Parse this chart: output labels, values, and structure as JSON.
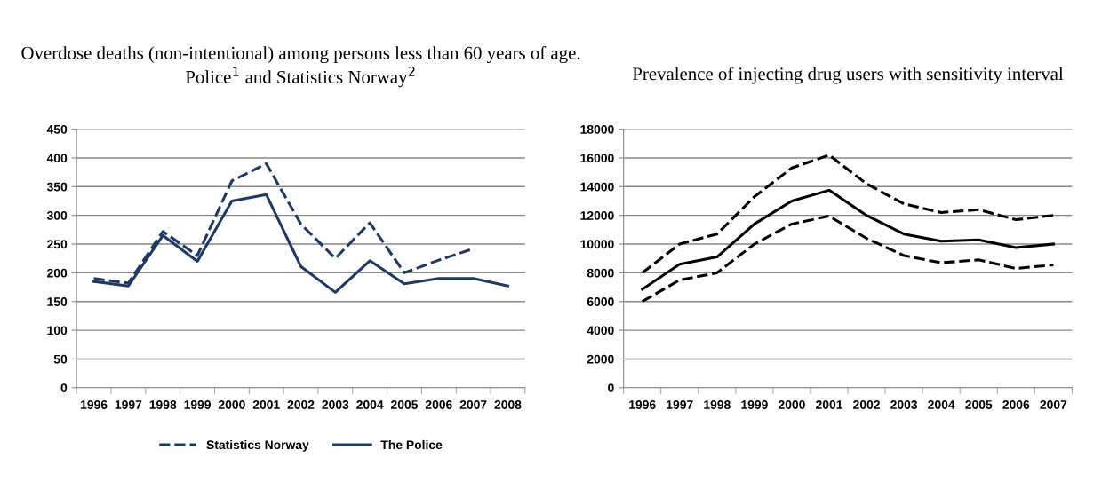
{
  "chart_data": [
    {
      "type": "line",
      "title": "Overdose deaths (non-intentional) among persons less than 60 years of age. Police$^{1}$ and Statistics Norway$^{2}$",
      "categories": [
        "1996",
        "1997",
        "1998",
        "1999",
        "2000",
        "2001",
        "2002",
        "2003",
        "2004",
        "2005",
        "2006",
        "2007",
        "2008"
      ],
      "series": [
        {
          "name": "Statistics Norway",
          "color": "#1f3864",
          "line_style": "dashed",
          "values": [
            190,
            182,
            272,
            230,
            360,
            390,
            285,
            225,
            287,
            200,
            222,
            242,
            null
          ]
        },
        {
          "name": "The Police",
          "color": "#1f3864",
          "line_style": "solid",
          "values": [
            185,
            177,
            265,
            220,
            325,
            336,
            211,
            166,
            221,
            181,
            190,
            190,
            177
          ]
        }
      ],
      "ylim": [
        0,
        450
      ],
      "yticks": [
        0,
        50,
        100,
        150,
        200,
        250,
        300,
        350,
        400,
        450
      ],
      "grid": "y",
      "legend": "bottom",
      "marker": "none"
    },
    {
      "type": "line",
      "title": "Prevalence of injecting drug users with sensitivity interval",
      "categories": [
        "1996",
        "1997",
        "1998",
        "1999",
        "2000",
        "2001",
        "2002",
        "2003",
        "2004",
        "2005",
        "2006",
        "2007"
      ],
      "series": [
        {
          "color": "#000000",
          "line_style": "dashed",
          "values": [
            8000,
            10000,
            10700,
            13300,
            15300,
            16200,
            14200,
            12800,
            12200,
            12400,
            11700,
            12000
          ]
        },
        {
          "color": "#000000",
          "line_style": "solid",
          "values": [
            6850,
            8600,
            9100,
            11400,
            13000,
            13750,
            12000,
            10700,
            10200,
            10300,
            9750,
            10000
          ]
        },
        {
          "color": "#000000",
          "line_style": "dashed",
          "values": [
            6000,
            7500,
            8000,
            10000,
            11400,
            11950,
            10400,
            9200,
            8700,
            8900,
            8300,
            8550
          ]
        }
      ],
      "ylim": [
        0,
        18000
      ],
      "yticks": [
        0,
        2000,
        4000,
        6000,
        8000,
        10000,
        12000,
        14000,
        16000,
        18000
      ],
      "grid": "y",
      "legend": false,
      "marker": "none"
    }
  ]
}
